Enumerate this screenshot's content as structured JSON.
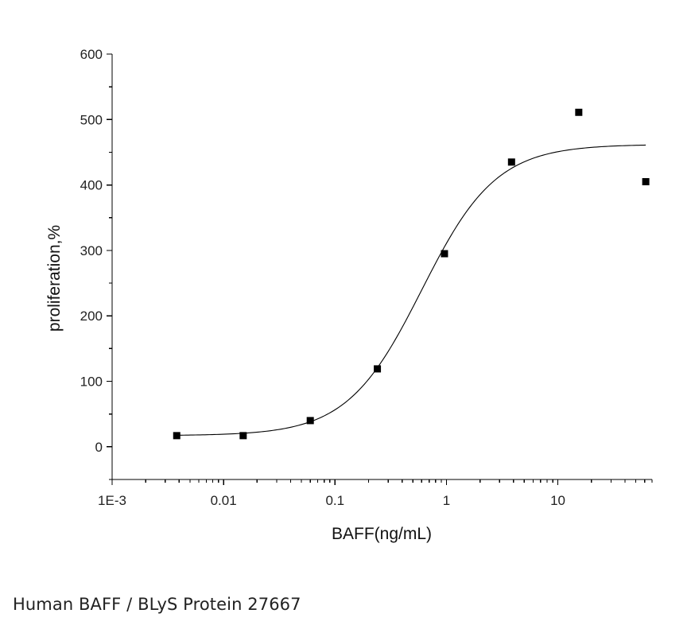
{
  "caption": "Human BAFF / BLyS Protein 27667",
  "chart_data": {
    "type": "scatter",
    "xlabel": "BAFF(ng/mL)",
    "ylabel": "proliferation,%",
    "x_scale": "log",
    "xlim": [
      0.001,
      70
    ],
    "ylim": [
      -50,
      600
    ],
    "x_ticks": [
      {
        "value": 0.001,
        "label": "1E-3"
      },
      {
        "value": 0.01,
        "label": "0.01"
      },
      {
        "value": 0.1,
        "label": "0.1"
      },
      {
        "value": 1,
        "label": "1"
      },
      {
        "value": 10,
        "label": "10"
      }
    ],
    "y_ticks": [
      {
        "value": 0,
        "label": "0"
      },
      {
        "value": 100,
        "label": "100"
      },
      {
        "value": 200,
        "label": "200"
      },
      {
        "value": 300,
        "label": "300"
      },
      {
        "value": 400,
        "label": "400"
      },
      {
        "value": 500,
        "label": "500"
      },
      {
        "value": 600,
        "label": "600"
      }
    ],
    "series": [
      {
        "x": [
          0.0038,
          0.015,
          0.06,
          0.24,
          0.96,
          3.84,
          15.4,
          61.5
        ],
        "y": [
          17,
          17,
          40,
          119,
          295,
          435,
          511,
          405
        ],
        "marker": "square",
        "color": "#000000"
      }
    ],
    "fit_curve": {
      "type": "4PL",
      "bottom": 17,
      "top": 462,
      "ec50": 0.6,
      "hill": 1.3,
      "color": "#000000"
    },
    "grid": false,
    "legend": "none"
  }
}
